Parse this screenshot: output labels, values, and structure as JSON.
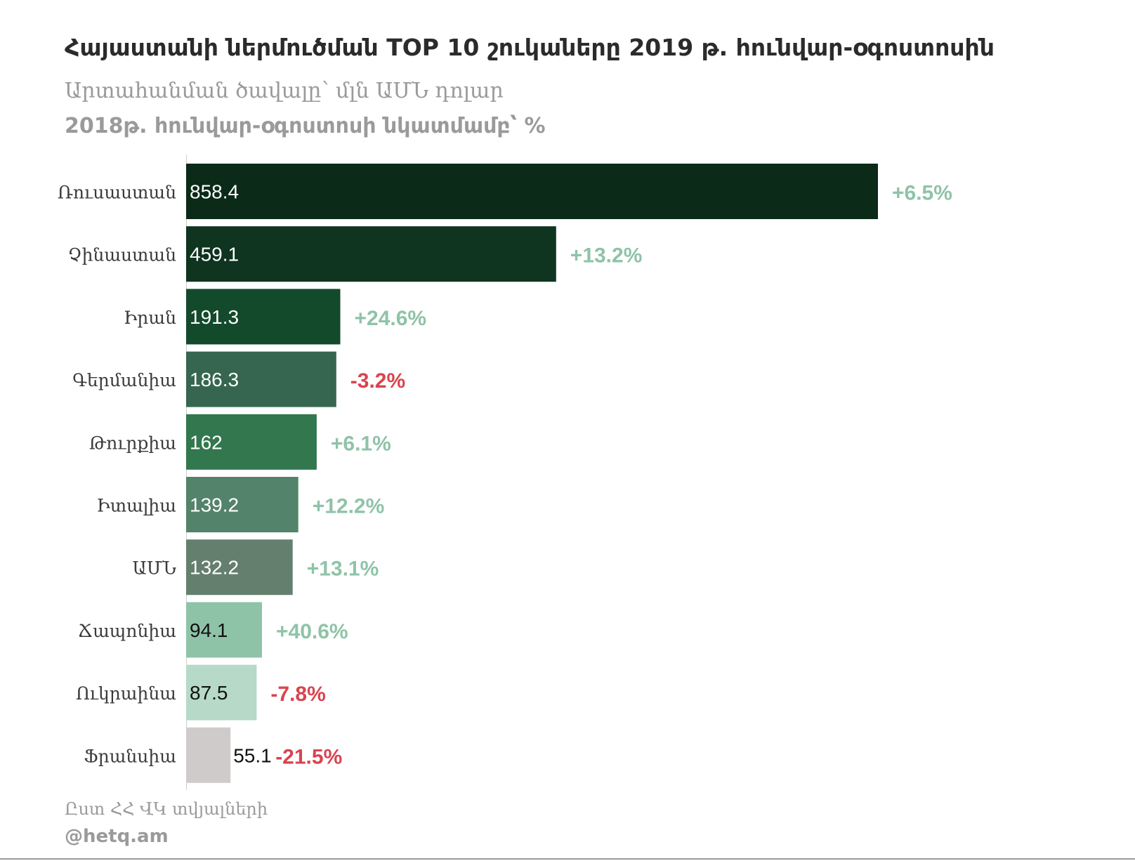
{
  "chart_data": {
    "type": "bar",
    "orientation": "horizontal",
    "title": "Հայաստանի ներմուծման TOP 10 շուկաները 2019 թ. հունվար-օգոստոսին",
    "subtitle": "Արտահանման ծավալը՝ մլն ԱՄՆ դոլար",
    "subtitle2": "2018թ. հունվար-օգոստոսի նկատմամբ՝ %",
    "categories": [
      "Ռուսաստան",
      "Չինաստան",
      "Իրան",
      "Գերմանիա",
      "Թուրքիա",
      "Իտալիա",
      "ԱՄՆ",
      "Ճապոնիա",
      "Ուկրաինա",
      "Ֆրանսիա"
    ],
    "values": [
      858.4,
      459.1,
      191.3,
      186.3,
      162,
      139.2,
      132.2,
      94.1,
      87.5,
      55.1
    ],
    "value_labels": [
      "858.4",
      "459.1",
      "191.3",
      "186.3",
      "162",
      "139.2",
      "132.2",
      "94.1",
      "87.5",
      "55.1"
    ],
    "change_labels": [
      "+6.5%",
      "+13.2%",
      "+24.6%",
      "-3.2%",
      "+6.1%",
      "+12.2%",
      "+13.1%",
      "+40.6%",
      "-7.8%",
      "-21.5%"
    ],
    "change_values": [
      6.5,
      13.2,
      24.6,
      -3.2,
      6.1,
      12.2,
      13.1,
      40.6,
      -7.8,
      -21.5
    ],
    "bar_colors": [
      "#0b2a18",
      "#0f3420",
      "#134a2b",
      "#366650",
      "#33774e",
      "#53836a",
      "#657f6f",
      "#8fc3a7",
      "#b7d9c8",
      "#cfcbcb"
    ],
    "value_label_colors": [
      "#ffffff",
      "#ffffff",
      "#ffffff",
      "#ffffff",
      "#ffffff",
      "#ffffff",
      "#ffffff",
      "#111111",
      "#111111",
      "#111111"
    ],
    "positive_color": "#8fc3a7",
    "negative_color": "#d9434f",
    "xlim": [
      0,
      858.4
    ],
    "grid": false,
    "legend": "none"
  },
  "source": "Ըստ ՀՀ ՎԿ տվյալների",
  "credit": "@hetq.am"
}
